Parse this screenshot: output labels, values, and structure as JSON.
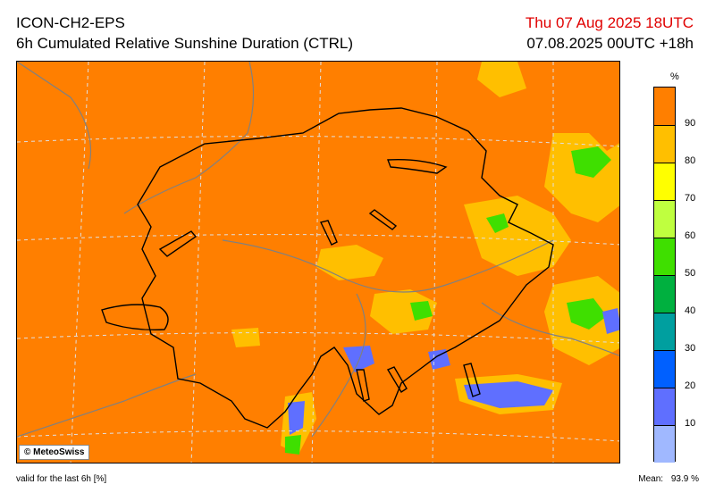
{
  "header": {
    "model": "ICON-CH2-EPS",
    "product": "6h Cumulated Relative Sunshine Duration (CTRL)",
    "valid_time": "Thu 07 Aug 2025 18UTC",
    "run_time": "07.08.2025 00UTC +18h"
  },
  "map": {
    "credit": "© MeteoSwiss",
    "colors": {
      "background": "#ff7f00",
      "contour": "#000000",
      "rivers_boundaries": "#808080",
      "graticule": "#e0e0e0"
    }
  },
  "legend": {
    "unit": "%",
    "labels": [
      "90",
      "80",
      "70",
      "60",
      "50",
      "40",
      "30",
      "20",
      "10"
    ],
    "colors": [
      "#ff7f00",
      "#ffbf00",
      "#ffff00",
      "#bfff3f",
      "#3fdf00",
      "#00b03f",
      "#009f9f",
      "#0060ff",
      "#5f6fff",
      "#a0b8ff"
    ]
  },
  "footer": {
    "validity": "valid for the last 6h [%]",
    "mean_label": "Mean:",
    "mean_value": "93.9 %"
  }
}
